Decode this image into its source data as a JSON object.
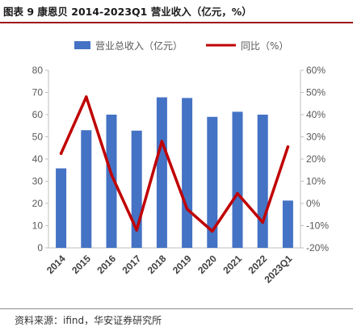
{
  "figure_title": "图表 9 康恩贝 2014-2023Q1 营业收入（亿元，%）",
  "source": "资料来源：ifind，华安证券研究所",
  "chart_data": {
    "type": "bar",
    "categories": [
      "2014",
      "2015",
      "2016",
      "2017",
      "2018",
      "2019",
      "2020",
      "2021",
      "2022",
      "2023Q1"
    ],
    "series": [
      {
        "name": "营业总收入（亿元）",
        "type": "bar",
        "axis": "left",
        "color": "#4472C4",
        "values": [
          35.8,
          53.0,
          60.0,
          52.8,
          67.8,
          67.5,
          59.0,
          61.3,
          60.0,
          21.3
        ]
      },
      {
        "name": "同比（%）",
        "type": "line",
        "axis": "right",
        "color": "#C00000",
        "values": [
          22.5,
          48,
          13,
          -12,
          28,
          -2.5,
          -12.5,
          4.5,
          -8.5,
          25.5
        ]
      }
    ],
    "y_left": {
      "min": 0,
      "max": 80,
      "step": 10,
      "ticks": [
        "0",
        "10",
        "20",
        "30",
        "40",
        "50",
        "60",
        "70",
        "80"
      ]
    },
    "y_right": {
      "min": -20,
      "max": 60,
      "step": 10,
      "ticks": [
        "-20%",
        "-10%",
        "0%",
        "10%",
        "20%",
        "30%",
        "40%",
        "50%",
        "60%"
      ]
    },
    "legend_position": "top",
    "grid": false
  }
}
